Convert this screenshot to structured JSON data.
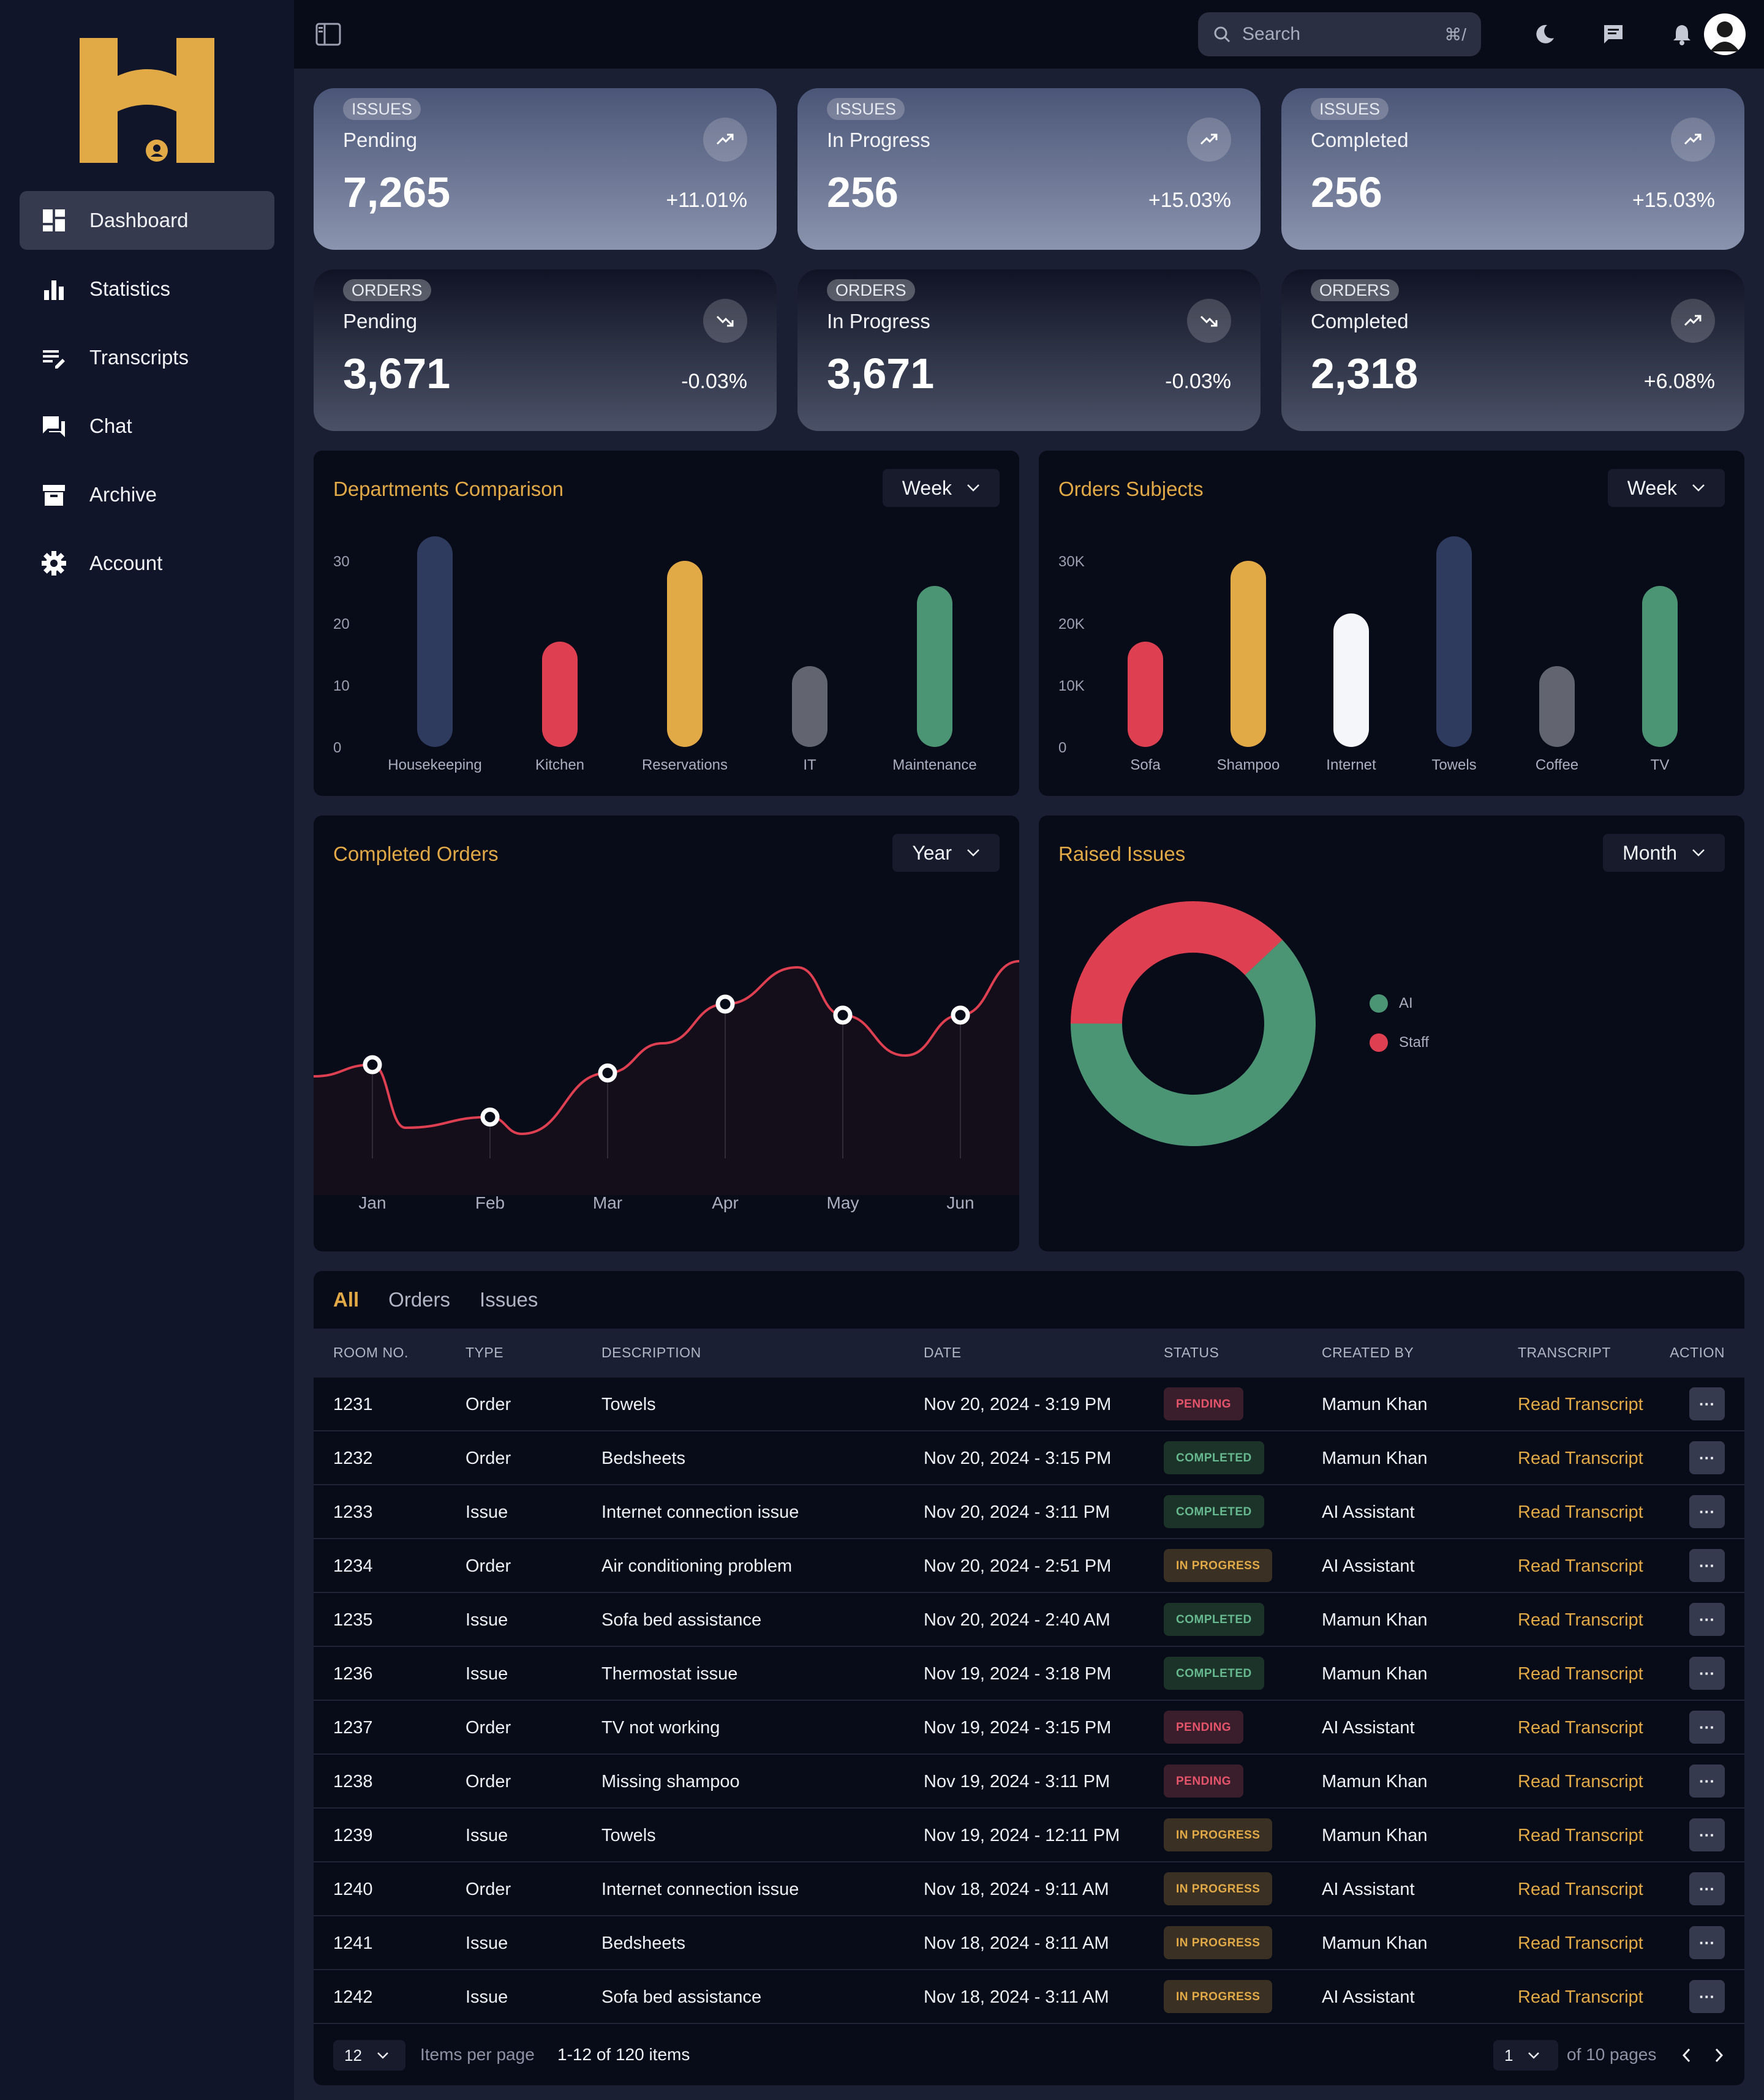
{
  "sidebar": {
    "items": [
      {
        "label": "Dashboard",
        "icon": "dashboard-icon",
        "active": true
      },
      {
        "label": "Statistics",
        "icon": "bar-chart-icon"
      },
      {
        "label": "Transcripts",
        "icon": "transcript-icon"
      },
      {
        "label": "Chat",
        "icon": "chat-icon"
      },
      {
        "label": "Archive",
        "icon": "archive-icon"
      },
      {
        "label": "Account",
        "icon": "gear-icon"
      }
    ]
  },
  "topbar": {
    "search_placeholder": "Search",
    "search_shortcut": "⌘/"
  },
  "stats": [
    {
      "tag": "ISSUES",
      "label": "Pending",
      "value": "7,265",
      "change": "+11.01%",
      "trend": "up"
    },
    {
      "tag": "ISSUES",
      "label": "In Progress",
      "value": "256",
      "change": "+15.03%",
      "trend": "up"
    },
    {
      "tag": "ISSUES",
      "label": "Completed",
      "value": "256",
      "change": "+15.03%",
      "trend": "up"
    },
    {
      "tag": "ORDERS",
      "label": "Pending",
      "value": "3,671",
      "change": "-0.03%",
      "trend": "down"
    },
    {
      "tag": "ORDERS",
      "label": "In Progress",
      "value": "3,671",
      "change": "-0.03%",
      "trend": "down"
    },
    {
      "tag": "ORDERS",
      "label": "Completed",
      "value": "2,318",
      "change": "+6.08%",
      "trend": "up"
    }
  ],
  "panels": {
    "departments": {
      "title": "Departments Comparison",
      "filter": "Week"
    },
    "subjects": {
      "title": "Orders Subjects",
      "filter": "Week"
    },
    "completed": {
      "title": "Completed Orders",
      "filter": "Year"
    },
    "raised": {
      "title": "Raised Issues",
      "filter": "Month"
    }
  },
  "chart_data": [
    {
      "type": "bar",
      "title": "Departments Comparison",
      "categories": [
        "Housekeeping",
        "Kitchen",
        "Reservations",
        "IT",
        "Maintenance"
      ],
      "values": [
        34,
        17,
        30,
        13,
        26
      ],
      "colors": [
        "#2e3a5e",
        "#de4052",
        "#e2a947",
        "#62656f",
        "#4b9474"
      ],
      "ylim": [
        0,
        34
      ],
      "yticks": [
        "30",
        "20",
        "10",
        "0"
      ],
      "ytick_values": [
        30,
        20,
        10,
        0
      ]
    },
    {
      "type": "bar",
      "title": "Orders Subjects",
      "categories": [
        "Sofa",
        "Shampoo",
        "Internet",
        "Towels",
        "Coffee",
        "TV"
      ],
      "values": [
        17000,
        30000,
        21500,
        34000,
        13000,
        26000
      ],
      "colors": [
        "#de4052",
        "#e2a947",
        "#f5f6f9",
        "#2e3a5e",
        "#62656f",
        "#4b9474"
      ],
      "ylim": [
        0,
        34000
      ],
      "yticks": [
        "30K",
        "20K",
        "10K",
        "0"
      ],
      "ytick_values": [
        30000,
        20000,
        10000,
        0
      ]
    },
    {
      "type": "line",
      "title": "Completed Orders",
      "categories": [
        "Jan",
        "Feb",
        "Mar",
        "Apr",
        "May",
        "Jun"
      ],
      "values": [
        54,
        35,
        51,
        76,
        72,
        72
      ],
      "ylim": [
        0,
        100
      ],
      "color": "#de4052"
    },
    {
      "type": "pie",
      "title": "Raised Issues",
      "labels": [
        "AI",
        "Staff"
      ],
      "values": [
        62,
        38
      ],
      "colors": [
        "#4b9474",
        "#de4052"
      ]
    }
  ],
  "table": {
    "tabs": [
      "All",
      "Orders",
      "Issues"
    ],
    "columns": [
      "ROOM NO.",
      "TYPE",
      "DESCRIPTION",
      "DATE",
      "STATUS",
      "CREATED BY",
      "TRANSCRIPT",
      "ACTION"
    ],
    "rows": [
      {
        "room": "1231",
        "type": "Order",
        "desc": "Towels",
        "date": "Nov 20, 2024 - 3:19 PM",
        "status": "PENDING",
        "by": "Mamun Khan",
        "link": "Read Transcript"
      },
      {
        "room": "1232",
        "type": "Order",
        "desc": "Bedsheets",
        "date": "Nov 20, 2024 - 3:15 PM",
        "status": "COMPLETED",
        "by": "Mamun Khan",
        "link": "Read Transcript"
      },
      {
        "room": "1233",
        "type": "Issue",
        "desc": "Internet connection issue",
        "date": "Nov 20, 2024 - 3:11 PM",
        "status": "COMPLETED",
        "by": "AI Assistant",
        "link": "Read Transcript"
      },
      {
        "room": "1234",
        "type": "Order",
        "desc": "Air conditioning problem",
        "date": "Nov 20, 2024 - 2:51 PM",
        "status": "IN PROGRESS",
        "by": "AI Assistant",
        "link": "Read Transcript"
      },
      {
        "room": "1235",
        "type": "Issue",
        "desc": "Sofa bed assistance",
        "date": "Nov 20, 2024 - 2:40 AM",
        "status": "COMPLETED",
        "by": "Mamun Khan",
        "link": "Read Transcript"
      },
      {
        "room": "1236",
        "type": "Issue",
        "desc": "Thermostat issue",
        "date": "Nov 19, 2024 - 3:18 PM",
        "status": "COMPLETED",
        "by": "Mamun Khan",
        "link": "Read Transcript"
      },
      {
        "room": "1237",
        "type": "Order",
        "desc": "TV not working",
        "date": "Nov 19, 2024 - 3:15 PM",
        "status": "PENDING",
        "by": "AI Assistant",
        "link": "Read Transcript"
      },
      {
        "room": "1238",
        "type": "Order",
        "desc": "Missing shampoo",
        "date": "Nov 19, 2024 - 3:11 PM",
        "status": "PENDING",
        "by": "Mamun Khan",
        "link": "Read Transcript"
      },
      {
        "room": "1239",
        "type": "Issue",
        "desc": "Towels",
        "date": "Nov 19, 2024 - 12:11 PM",
        "status": "IN PROGRESS",
        "by": "Mamun Khan",
        "link": "Read Transcript"
      },
      {
        "room": "1240",
        "type": "Order",
        "desc": "Internet connection issue",
        "date": "Nov 18, 2024 - 9:11 AM",
        "status": "IN PROGRESS",
        "by": "AI Assistant",
        "link": "Read Transcript"
      },
      {
        "room": "1241",
        "type": "Issue",
        "desc": "Bedsheets",
        "date": "Nov 18, 2024 - 8:11 AM",
        "status": "IN PROGRESS",
        "by": "Mamun Khan",
        "link": "Read Transcript"
      },
      {
        "room": "1242",
        "type": "Issue",
        "desc": "Sofa bed assistance",
        "date": "Nov 18, 2024 - 3:11 AM",
        "status": "IN PROGRESS",
        "by": "AI Assistant",
        "link": "Read Transcript"
      }
    ],
    "action_label": "···",
    "pagination": {
      "per_page": "12",
      "per_page_label": "Items per page",
      "range": "1-12 of 120 items",
      "page": "1",
      "pages_label": "of 10 pages"
    }
  },
  "colors": {
    "accent": "#e2a947",
    "pending": "#e5546a",
    "completed": "#67b98f",
    "in_progress": "#e2a947"
  }
}
